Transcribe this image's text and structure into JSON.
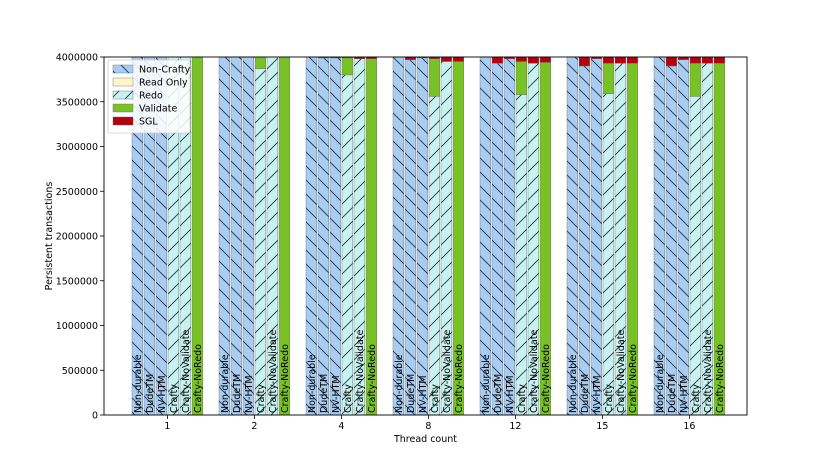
{
  "chart_data": {
    "type": "bar",
    "stacked": true,
    "title": "",
    "xlabel": "Thread count",
    "ylabel": "Persistent transactions",
    "ylim": [
      0,
      4000000
    ],
    "yticks": [
      0,
      500000,
      1000000,
      1500000,
      2000000,
      2500000,
      3000000,
      3500000,
      4000000
    ],
    "groups": [
      "1",
      "2",
      "4",
      "8",
      "12",
      "15",
      "16"
    ],
    "variants": [
      "Non-durable",
      "DudeTM",
      "NV-HTM",
      "Crafty",
      "Crafty-NoValidate",
      "Crafty-NoRedo"
    ],
    "legend": {
      "placement": "top-left",
      "entries": [
        "Non-Crafty",
        "Read Only",
        "Redo",
        "Validate",
        "SGL"
      ]
    },
    "colors": {
      "Non-Crafty": "#a8cdf0",
      "Read Only": "#fff6c8",
      "Redo": "#c8f2f0",
      "Validate": "#78c228",
      "SGL": "#b5000f"
    },
    "series": [
      {
        "name": "Non-Crafty",
        "values": [
          [
            4000000,
            4000000,
            4000000,
            0,
            0,
            0
          ],
          [
            4000000,
            4000000,
            4000000,
            0,
            0,
            0
          ],
          [
            4000000,
            3990000,
            3990000,
            0,
            0,
            0
          ],
          [
            4000000,
            3970000,
            3990000,
            0,
            0,
            0
          ],
          [
            4000000,
            3930000,
            3980000,
            0,
            0,
            0
          ],
          [
            4000000,
            3900000,
            3980000,
            0,
            0,
            0
          ],
          [
            4000000,
            3900000,
            3970000,
            0,
            0,
            0
          ]
        ]
      },
      {
        "name": "Read Only",
        "values": [
          [
            0,
            0,
            0,
            0,
            0,
            0
          ],
          [
            0,
            0,
            0,
            0,
            0,
            0
          ],
          [
            0,
            0,
            0,
            0,
            0,
            0
          ],
          [
            0,
            0,
            0,
            0,
            0,
            0
          ],
          [
            0,
            0,
            0,
            0,
            0,
            0
          ],
          [
            0,
            0,
            0,
            0,
            0,
            0
          ],
          [
            0,
            0,
            0,
            0,
            0,
            0
          ]
        ]
      },
      {
        "name": "Redo",
        "values": [
          [
            0,
            0,
            0,
            4000000,
            4000000,
            0
          ],
          [
            0,
            0,
            0,
            3870000,
            4000000,
            0
          ],
          [
            0,
            0,
            0,
            3800000,
            3980000,
            0
          ],
          [
            0,
            0,
            0,
            3560000,
            3950000,
            0
          ],
          [
            0,
            0,
            0,
            3580000,
            3930000,
            0
          ],
          [
            0,
            0,
            0,
            3590000,
            3930000,
            0
          ],
          [
            0,
            0,
            0,
            3560000,
            3930000,
            0
          ]
        ]
      },
      {
        "name": "Validate",
        "values": [
          [
            0,
            0,
            0,
            0,
            0,
            4000000
          ],
          [
            0,
            0,
            0,
            130000,
            0,
            4000000
          ],
          [
            0,
            0,
            0,
            190000,
            0,
            3980000
          ],
          [
            0,
            0,
            0,
            420000,
            0,
            3950000
          ],
          [
            0,
            0,
            0,
            370000,
            0,
            3940000
          ],
          [
            0,
            0,
            0,
            340000,
            0,
            3930000
          ],
          [
            0,
            0,
            0,
            370000,
            0,
            3930000
          ]
        ]
      },
      {
        "name": "SGL",
        "values": [
          [
            0,
            0,
            0,
            0,
            0,
            0
          ],
          [
            0,
            0,
            0,
            0,
            0,
            0
          ],
          [
            0,
            10000,
            10000,
            10000,
            20000,
            20000
          ],
          [
            0,
            30000,
            10000,
            20000,
            50000,
            50000
          ],
          [
            0,
            70000,
            20000,
            50000,
            70000,
            60000
          ],
          [
            0,
            100000,
            20000,
            70000,
            70000,
            70000
          ],
          [
            0,
            100000,
            30000,
            70000,
            70000,
            70000
          ]
        ]
      }
    ]
  }
}
